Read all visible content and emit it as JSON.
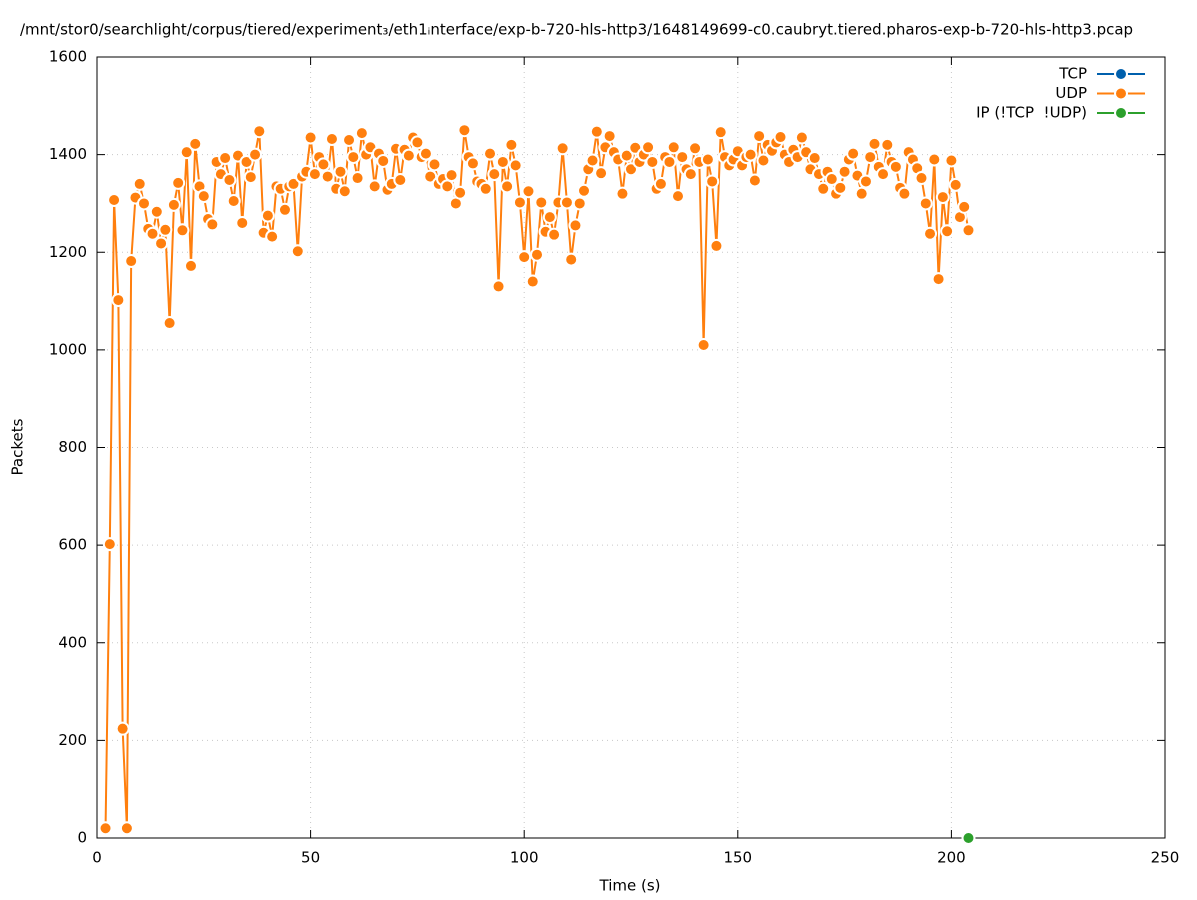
{
  "chart_data": {
    "type": "line",
    "title": "/mnt/stor0/searchlight/corpus/tiered/experiment₃/eth1ᵢnterface/exp-b-720-hls-http3/1648149699-c0.caubryt.tiered.pharos-exp-b-720-hls-http3.pcap",
    "xlabel": "Time (s)",
    "ylabel": "Packets",
    "xlim": [
      0,
      250
    ],
    "xticks": [
      0,
      50,
      100,
      150,
      200,
      250
    ],
    "ylim": [
      0,
      1600
    ],
    "yticks": [
      0,
      200,
      400,
      600,
      800,
      1000,
      1200,
      1400,
      1600
    ],
    "grid": true,
    "legend": "top-right",
    "series": [
      {
        "name": "TCP",
        "color": "#0060ad",
        "x": [],
        "values": []
      },
      {
        "name": "UDP",
        "color": "#ff7f0e",
        "x": [
          2,
          3,
          4,
          5,
          6,
          7,
          8,
          9,
          10,
          11,
          12,
          13,
          14,
          15,
          16,
          17,
          18,
          19,
          20,
          21,
          22,
          23,
          24,
          25,
          26,
          27,
          28,
          29,
          30,
          31,
          32,
          33,
          34,
          35,
          36,
          37,
          38,
          39,
          40,
          41,
          42,
          43,
          44,
          45,
          46,
          47,
          48,
          49,
          50,
          51,
          52,
          53,
          54,
          55,
          56,
          57,
          58,
          59,
          60,
          61,
          62,
          63,
          64,
          65,
          66,
          67,
          68,
          69,
          70,
          71,
          72,
          73,
          74,
          75,
          76,
          77,
          78,
          79,
          80,
          81,
          82,
          83,
          84,
          85,
          86,
          87,
          88,
          89,
          90,
          91,
          92,
          93,
          94,
          95,
          96,
          97,
          98,
          99,
          100,
          101,
          102,
          103,
          104,
          105,
          106,
          107,
          108,
          109,
          110,
          111,
          112,
          113,
          114,
          115,
          116,
          117,
          118,
          119,
          120,
          121,
          122,
          123,
          124,
          125,
          126,
          127,
          128,
          129,
          130,
          131,
          132,
          133,
          134,
          135,
          136,
          137,
          138,
          139,
          140,
          141,
          142,
          143,
          144,
          145,
          146,
          147,
          148,
          149,
          150,
          151,
          152,
          153,
          154,
          155,
          156,
          157,
          158,
          159,
          160,
          161,
          162,
          163,
          164,
          165,
          166,
          167,
          168,
          169,
          170,
          171,
          172,
          173,
          174,
          175,
          176,
          177,
          178,
          179,
          180,
          181,
          182,
          183,
          184,
          185,
          186,
          187,
          188,
          189,
          190,
          191,
          192,
          193,
          194,
          195,
          196,
          197,
          198,
          199,
          200,
          201,
          202,
          203,
          204
        ],
        "values": [
          20,
          602,
          1307,
          1102,
          224,
          20,
          1182,
          1312,
          1340,
          1300,
          1248,
          1238,
          1283,
          1218,
          1246,
          1055,
          1297,
          1342,
          1245,
          1405,
          1172,
          1422,
          1335,
          1315,
          1268,
          1257,
          1385,
          1360,
          1393,
          1348,
          1305,
          1398,
          1260,
          1385,
          1354,
          1400,
          1448,
          1240,
          1275,
          1232,
          1335,
          1330,
          1287,
          1335,
          1340,
          1202,
          1355,
          1365,
          1435,
          1360,
          1395,
          1380,
          1355,
          1432,
          1330,
          1365,
          1325,
          1430,
          1395,
          1352,
          1444,
          1400,
          1415,
          1335,
          1402,
          1387,
          1328,
          1340,
          1412,
          1348,
          1410,
          1398,
          1435,
          1425,
          1395,
          1402,
          1355,
          1380,
          1340,
          1350,
          1335,
          1358,
          1300,
          1322,
          1450,
          1395,
          1382,
          1345,
          1340,
          1330,
          1402,
          1360,
          1130,
          1385,
          1335,
          1420,
          1378,
          1302,
          1190,
          1325,
          1140,
          1195,
          1302,
          1242,
          1272,
          1236,
          1302,
          1413,
          1302,
          1185,
          1255,
          1300,
          1326,
          1370,
          1388,
          1447,
          1362,
          1415,
          1438,
          1405,
          1390,
          1320,
          1398,
          1370,
          1414,
          1385,
          1400,
          1415,
          1385,
          1330,
          1340,
          1395,
          1385,
          1415,
          1315,
          1395,
          1370,
          1360,
          1413,
          1385,
          1010,
          1390,
          1345,
          1213,
          1446,
          1395,
          1378,
          1390,
          1407,
          1378,
          1395,
          1400,
          1347,
          1438,
          1388,
          1420,
          1408,
          1425,
          1436,
          1400,
          1385,
          1410,
          1395,
          1435,
          1405,
          1370,
          1393,
          1360,
          1330,
          1365,
          1350,
          1320,
          1332,
          1365,
          1390,
          1402,
          1357,
          1320,
          1345,
          1395,
          1422,
          1375,
          1360,
          1420,
          1385,
          1375,
          1332,
          1320,
          1405,
          1390,
          1372,
          1352,
          1300,
          1238,
          1390,
          1145,
          1313,
          1243,
          1388,
          1338,
          1272,
          1293,
          1245
        ]
      },
      {
        "name": "IP (!TCP  !UDP)",
        "color": "#2ca02c",
        "x": [
          204
        ],
        "values": [
          0
        ]
      }
    ]
  }
}
